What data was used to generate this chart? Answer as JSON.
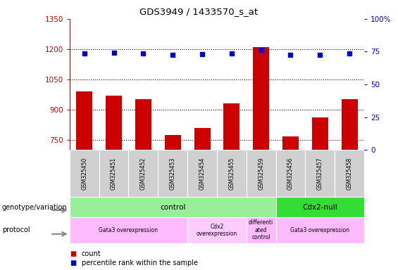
{
  "title": "GDS3949 / 1433570_s_at",
  "samples": [
    "GSM325450",
    "GSM325451",
    "GSM325452",
    "GSM325453",
    "GSM325454",
    "GSM325455",
    "GSM325459",
    "GSM325456",
    "GSM325457",
    "GSM325458"
  ],
  "counts": [
    990,
    970,
    950,
    775,
    810,
    930,
    1210,
    765,
    860,
    950
  ],
  "percentile_ranks": [
    73.5,
    74,
    73.5,
    72.5,
    73,
    73.5,
    76.5,
    72.5,
    72.5,
    73.5
  ],
  "ylim_left": [
    700,
    1350
  ],
  "ylim_right": [
    0,
    100
  ],
  "left_ticks": [
    750,
    900,
    1050,
    1200,
    1350
  ],
  "right_ticks": [
    0,
    25,
    50,
    75,
    100
  ],
  "bar_color": "#cc0000",
  "dot_color": "#0000cc",
  "genotype_row": [
    {
      "label": "control",
      "start": 0,
      "end": 7,
      "color": "#99ee99"
    },
    {
      "label": "Cdx2-null",
      "start": 7,
      "end": 10,
      "color": "#33dd33"
    }
  ],
  "protocol_row": [
    {
      "label": "Gata3 overexpression",
      "start": 0,
      "end": 4,
      "color": "#ffbbff"
    },
    {
      "label": "Cdx2\noverexpression",
      "start": 4,
      "end": 6,
      "color": "#ffbbff"
    },
    {
      "label": "differenti\nated\ncontrol",
      "start": 6,
      "end": 7,
      "color": "#ffbbff"
    },
    {
      "label": "Gata3 overexpression",
      "start": 7,
      "end": 10,
      "color": "#ffbbff"
    }
  ],
  "left_label_color": "#cc0000",
  "right_label_color": "#0000cc"
}
